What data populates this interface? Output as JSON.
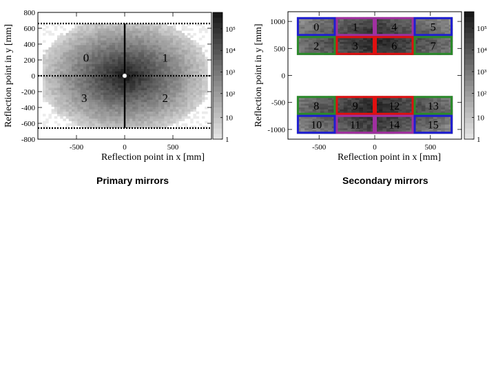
{
  "captions": {
    "primary": "Primary mirrors",
    "secondary": "Secondary mirrors"
  },
  "colorbar": {
    "labels": [
      "10⁵",
      "10⁴",
      "10³",
      "10²",
      "10",
      "1"
    ],
    "scale": "log",
    "range": [
      1,
      1000000
    ]
  },
  "chart_data": [
    {
      "type": "heatmap",
      "title": "",
      "xlabel": "Reflection point in x [mm]",
      "ylabel": "Reflection point in y [mm]",
      "xlim": [
        -900,
        900
      ],
      "ylim": [
        -800,
        800
      ],
      "xticks": [
        -500,
        0,
        500
      ],
      "xtick_labels": [
        "-500",
        "0",
        "500"
      ],
      "yticks": [
        800,
        600,
        400,
        200,
        0,
        -200,
        -400,
        -600,
        -800
      ],
      "ytick_labels": [
        "800",
        "600",
        "400",
        "200",
        "0",
        "-200",
        "-400",
        "-600",
        "-800"
      ],
      "colorbar_scale": "log",
      "colorbar_range": [
        1,
        1000000
      ],
      "distribution": {
        "center_x": 0,
        "center_y": 0,
        "peak_count": 300000,
        "extent_x": [
          -850,
          850
        ],
        "extent_y": [
          -660,
          660
        ]
      },
      "boundaries": {
        "dotted_horizontal_y": [
          660,
          0,
          -660
        ],
        "solid_vertical_x": 0,
        "solid_vertical_range_y": [
          -660,
          660
        ]
      },
      "regions": [
        {
          "label": "0",
          "x": -400,
          "y": 230
        },
        {
          "label": "1",
          "x": 420,
          "y": 230
        },
        {
          "label": "3",
          "x": -420,
          "y": -280
        },
        {
          "label": "2",
          "x": 420,
          "y": -280
        }
      ]
    },
    {
      "type": "heatmap",
      "title": "",
      "xlabel": "Reflection point in x [mm]",
      "ylabel": "Reflection point in y [mm]",
      "xlim": [
        -780,
        780
      ],
      "ylim": [
        -1180,
        1180
      ],
      "xticks": [
        -500,
        0,
        500
      ],
      "xtick_labels": [
        "-500",
        "0",
        "500"
      ],
      "yticks": [
        1000,
        500,
        0,
        -500,
        -1000
      ],
      "ytick_labels": [
        "1000",
        "500",
        "0",
        "-500",
        "-1000"
      ],
      "colorbar_scale": "log",
      "colorbar_range": [
        1,
        1000000
      ],
      "mirrors": [
        {
          "label": "0",
          "x": [
            -700,
            -350
          ],
          "y": [
            730,
            1080
          ],
          "color": "#1f1fd0"
        },
        {
          "label": "1",
          "x": [
            -350,
            0
          ],
          "y": [
            730,
            1080
          ],
          "color": "#a030a0"
        },
        {
          "label": "4",
          "x": [
            0,
            350
          ],
          "y": [
            730,
            1080
          ],
          "color": "#a030a0"
        },
        {
          "label": "5",
          "x": [
            350,
            700
          ],
          "y": [
            730,
            1080
          ],
          "color": "#1f1fd0"
        },
        {
          "label": "2",
          "x": [
            -700,
            -350
          ],
          "y": [
            380,
            730
          ],
          "color": "#2a8a2a"
        },
        {
          "label": "3",
          "x": [
            -350,
            0
          ],
          "y": [
            380,
            730
          ],
          "color": "#e01010"
        },
        {
          "label": "6",
          "x": [
            0,
            350
          ],
          "y": [
            380,
            730
          ],
          "color": "#e01010"
        },
        {
          "label": "7",
          "x": [
            350,
            700
          ],
          "y": [
            380,
            730
          ],
          "color": "#2a8a2a"
        },
        {
          "label": "8",
          "x": [
            -700,
            -350
          ],
          "y": [
            -730,
            -380
          ],
          "color": "#2a8a2a"
        },
        {
          "label": "9",
          "x": [
            -350,
            0
          ],
          "y": [
            -730,
            -380
          ],
          "color": "#e01010"
        },
        {
          "label": "12",
          "x": [
            0,
            350
          ],
          "y": [
            -730,
            -380
          ],
          "color": "#e01010"
        },
        {
          "label": "13",
          "x": [
            350,
            700
          ],
          "y": [
            -730,
            -380
          ],
          "color": "#2a8a2a"
        },
        {
          "label": "10",
          "x": [
            -700,
            -350
          ],
          "y": [
            -1080,
            -730
          ],
          "color": "#1f1fd0"
        },
        {
          "label": "11",
          "x": [
            -350,
            0
          ],
          "y": [
            -1080,
            -730
          ],
          "color": "#a030a0"
        },
        {
          "label": "14",
          "x": [
            0,
            350
          ],
          "y": [
            -1080,
            -730
          ],
          "color": "#a030a0"
        },
        {
          "label": "15",
          "x": [
            350,
            700
          ],
          "y": [
            -1080,
            -730
          ],
          "color": "#1f1fd0"
        }
      ]
    }
  ]
}
